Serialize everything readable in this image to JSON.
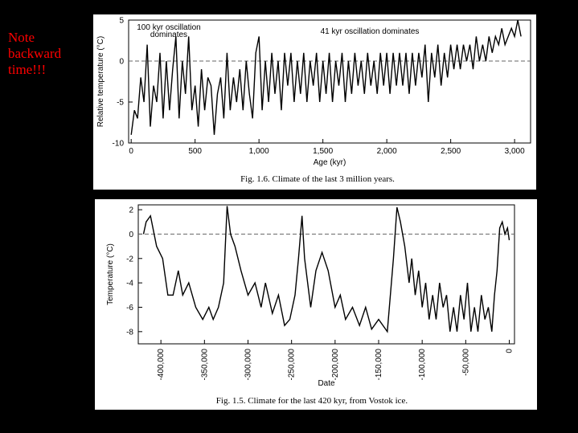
{
  "note": "Note backward time!!!",
  "chart_data": [
    {
      "type": "line",
      "caption": "Fig. 1.6. Climate of the last 3 million years.",
      "xlabel": "Age (kyr)",
      "ylabel": "Relative temperature (°C)",
      "annotations": [
        "100 kyr oscillation dominates",
        "41 kyr oscillation dominates"
      ],
      "xlim": [
        -20,
        3125
      ],
      "ylim": [
        -10,
        5
      ],
      "xticks": [
        0,
        500,
        {
          "value": 1000,
          "label": "1,000"
        },
        {
          "value": 1500,
          "label": "1,500"
        },
        {
          "value": 2000,
          "label": "2,000"
        },
        {
          "value": 2500,
          "label": "2,500"
        },
        {
          "value": 3000,
          "label": "3,000"
        }
      ],
      "yticks": [
        -10,
        -5,
        0,
        5
      ],
      "reference_line": 0,
      "series": [
        {
          "color": "#000000",
          "x": [
            0,
            25,
            50,
            75,
            100,
            125,
            150,
            175,
            200,
            225,
            250,
            275,
            300,
            325,
            350,
            375,
            400,
            425,
            450,
            475,
            500,
            525,
            550,
            575,
            600,
            625,
            650,
            675,
            700,
            725,
            750,
            775,
            800,
            825,
            850,
            875,
            900,
            925,
            950,
            975,
            1000,
            1025,
            1050,
            1075,
            1100,
            1125,
            1150,
            1175,
            1200,
            1225,
            1250,
            1275,
            1300,
            1325,
            1350,
            1375,
            1400,
            1425,
            1450,
            1475,
            1500,
            1525,
            1550,
            1575,
            1600,
            1625,
            1650,
            1675,
            1700,
            1725,
            1750,
            1775,
            1800,
            1825,
            1850,
            1875,
            1900,
            1925,
            1950,
            1975,
            2000,
            2025,
            2050,
            2075,
            2100,
            2125,
            2150,
            2175,
            2200,
            2225,
            2250,
            2275,
            2300,
            2325,
            2350,
            2375,
            2400,
            2425,
            2450,
            2475,
            2500,
            2525,
            2550,
            2575,
            2600,
            2625,
            2650,
            2675,
            2700,
            2725,
            2750,
            2775,
            2800,
            2825,
            2850,
            2875,
            2900,
            2925,
            2950,
            2975,
            3000,
            3025,
            3050
          ],
          "values": [
            -9,
            -6,
            -7,
            -2,
            -5,
            2,
            -8,
            -3,
            -5,
            1,
            -7,
            0,
            -6,
            -1,
            3,
            -7,
            0,
            -4,
            3,
            -6,
            -3,
            -8,
            -1,
            -6,
            -2,
            -3,
            -9,
            -4,
            -2,
            -7,
            1,
            -6,
            -2,
            -5,
            -1,
            -6,
            0,
            -4,
            -7,
            1,
            3,
            -6,
            0,
            -5,
            1,
            -4,
            0,
            -6,
            1,
            -3,
            1,
            -5,
            0,
            -4,
            1,
            -5,
            0,
            -3,
            1,
            -5,
            0,
            -4,
            1,
            -5,
            0,
            -3,
            1,
            -5,
            0,
            -4,
            1,
            -3,
            0,
            -4,
            1,
            -3,
            0,
            -4,
            1,
            -3,
            1,
            -4,
            1,
            -3,
            1,
            -3,
            1,
            -4,
            1,
            -3,
            1,
            -2,
            2,
            -5,
            1,
            -2,
            2,
            -3,
            1,
            -2,
            2,
            -1,
            2,
            -1,
            2,
            0,
            2,
            -1,
            3,
            0,
            2,
            0,
            3,
            1,
            3,
            2,
            4,
            2,
            3,
            4,
            3,
            5,
            3
          ]
        }
      ]
    },
    {
      "type": "line",
      "caption": "Fig. 1.5. Climate for the last 420 kyr, from Vostok ice.",
      "xlabel": "Date",
      "ylabel": "Temperature (°C)",
      "xlim": [
        -426000,
        6000
      ],
      "ylim": [
        -9,
        2.4
      ],
      "xticks": [
        {
          "value": -400000,
          "label": "-400,000"
        },
        {
          "value": -350000,
          "label": "-350,000"
        },
        {
          "value": -300000,
          "label": "-300,000"
        },
        {
          "value": -250000,
          "label": "-250,000"
        },
        {
          "value": -200000,
          "label": "-200,000"
        },
        {
          "value": -150000,
          "label": "-150,000"
        },
        {
          "value": -100000,
          "label": "-100,000"
        },
        {
          "value": -50000,
          "label": "-50,000"
        },
        0
      ],
      "yticks": [
        2,
        0,
        -2,
        -4,
        -6,
        -8
      ],
      "reference_line": 0,
      "series": [
        {
          "color": "#000000",
          "x": [
            -420000,
            -417000,
            -412000,
            -405000,
            -398000,
            -392000,
            -386000,
            -380000,
            -375000,
            -368000,
            -360000,
            -352000,
            -345000,
            -340000,
            -334000,
            -328000,
            -324000,
            -320000,
            -315000,
            -308000,
            -300000,
            -292000,
            -285000,
            -280000,
            -272000,
            -265000,
            -258000,
            -252000,
            -246000,
            -242000,
            -238000,
            -235000,
            -228000,
            -222000,
            -215000,
            -208000,
            -200000,
            -194000,
            -188000,
            -180000,
            -172000,
            -165000,
            -158000,
            -150000,
            -140000,
            -133000,
            -129000,
            -125000,
            -120000,
            -115000,
            -112000,
            -108000,
            -104000,
            -100000,
            -96000,
            -92000,
            -88000,
            -84000,
            -80000,
            -76000,
            -72000,
            -68000,
            -64000,
            -60000,
            -56000,
            -52000,
            -48000,
            -44000,
            -40000,
            -36000,
            -32000,
            -28000,
            -24000,
            -20000,
            -17000,
            -14000,
            -11000,
            -8000,
            -5000,
            -2000,
            0
          ],
          "values": [
            0,
            1,
            1.5,
            -1,
            -2,
            -5,
            -5,
            -3,
            -5,
            -4,
            -6,
            -7,
            -6,
            -7,
            -6,
            -4,
            2.3,
            0,
            -1,
            -3,
            -5,
            -4,
            -6,
            -4,
            -6.5,
            -5,
            -7.5,
            -7,
            -5,
            -2,
            1.5,
            -2,
            -6,
            -3,
            -1.5,
            -3,
            -6,
            -5,
            -7,
            -6,
            -7.5,
            -6,
            -7.8,
            -7,
            -8,
            -2,
            2.2,
            1,
            -1,
            -4,
            -2,
            -5,
            -3,
            -6,
            -4,
            -7,
            -5,
            -7,
            -4,
            -6,
            -5,
            -8,
            -6,
            -8,
            -5,
            -7,
            -4,
            -8,
            -6,
            -8,
            -5,
            -7,
            -6,
            -8,
            -5,
            -3,
            0.5,
            1,
            0,
            0.5,
            -0.5
          ]
        }
      ]
    }
  ]
}
